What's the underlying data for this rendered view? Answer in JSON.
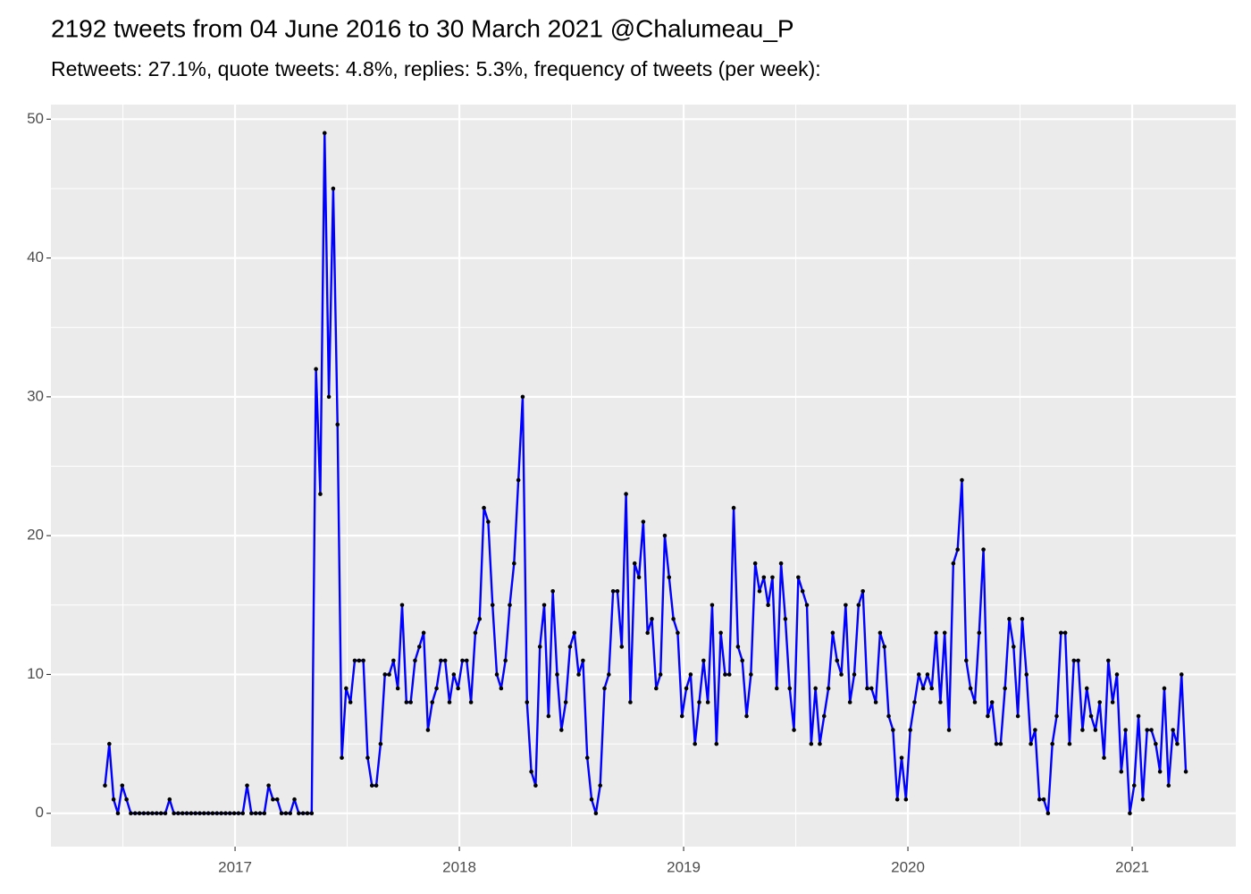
{
  "chart_data": {
    "type": "line",
    "title": "2192 tweets from 04 June 2016 to 30 March 2021 @Chalumeau_P",
    "subtitle": "Retweets: 27.1%, quote tweets: 4.8%, replies: 5.3%, frequency of tweets (per week):",
    "color": "#0000ff",
    "point_color": "#000000",
    "grid": true,
    "xlim": [
      2016.179,
      2021.462
    ],
    "xticks": [
      2017,
      2018,
      2019,
      2020,
      2021
    ],
    "ylim": [
      -2.4,
      51.05
    ],
    "yticks": [
      0,
      10,
      20,
      30,
      40,
      50
    ],
    "x": [
      2016.42,
      2016.4392,
      2016.4584,
      2016.4776,
      2016.4968,
      2016.516,
      2016.5352,
      2016.5544,
      2016.5736,
      2016.5928,
      2016.612,
      2016.6312,
      2016.6504,
      2016.6696,
      2016.6888,
      2016.708,
      2016.7272,
      2016.7464,
      2016.7656,
      2016.7848,
      2016.804,
      2016.8232,
      2016.8424,
      2016.8616,
      2016.8808,
      2016.9,
      2016.9192,
      2016.9384,
      2016.9576,
      2016.9768,
      2016.996,
      2017.0152,
      2017.0344,
      2017.0536,
      2017.0728,
      2017.092,
      2017.1112,
      2017.1304,
      2017.1496,
      2017.1688,
      2017.188,
      2017.2072,
      2017.2264,
      2017.2456,
      2017.2648,
      2017.284,
      2017.3032,
      2017.3224,
      2017.3416,
      2017.3608,
      2017.38,
      2017.3992,
      2017.4184,
      2017.4376,
      2017.4568,
      2017.476,
      2017.4952,
      2017.5144,
      2017.5336,
      2017.5528,
      2017.572,
      2017.5912,
      2017.6104,
      2017.6296,
      2017.6488,
      2017.668,
      2017.6872,
      2017.7064,
      2017.7256,
      2017.7448,
      2017.764,
      2017.7832,
      2017.8024,
      2017.8216,
      2017.8408,
      2017.86,
      2017.8792,
      2017.8984,
      2017.9176,
      2017.9368,
      2017.956,
      2017.9752,
      2017.9944,
      2018.0136,
      2018.0328,
      2018.052,
      2018.0712,
      2018.0904,
      2018.1096,
      2018.1288,
      2018.148,
      2018.1672,
      2018.1864,
      2018.2056,
      2018.2248,
      2018.244,
      2018.2632,
      2018.2824,
      2018.3016,
      2018.3208,
      2018.34,
      2018.3592,
      2018.3784,
      2018.3976,
      2018.4168,
      2018.436,
      2018.4552,
      2018.4744,
      2018.4936,
      2018.5128,
      2018.532,
      2018.5512,
      2018.5704,
      2018.5896,
      2018.6088,
      2018.628,
      2018.6472,
      2018.6664,
      2018.6856,
      2018.7048,
      2018.724,
      2018.7432,
      2018.7624,
      2018.7816,
      2018.8008,
      2018.82,
      2018.8392,
      2018.8584,
      2018.8776,
      2018.8968,
      2018.916,
      2018.9352,
      2018.9544,
      2018.9736,
      2018.9928,
      2019.012,
      2019.0312,
      2019.0504,
      2019.0696,
      2019.0888,
      2019.108,
      2019.1272,
      2019.1464,
      2019.1656,
      2019.1848,
      2019.204,
      2019.2232,
      2019.2424,
      2019.2616,
      2019.2808,
      2019.3,
      2019.3192,
      2019.3384,
      2019.3576,
      2019.3768,
      2019.396,
      2019.4152,
      2019.4344,
      2019.4536,
      2019.4728,
      2019.492,
      2019.5112,
      2019.5304,
      2019.5496,
      2019.5688,
      2019.588,
      2019.6072,
      2019.6264,
      2019.6456,
      2019.6648,
      2019.684,
      2019.7032,
      2019.7224,
      2019.7416,
      2019.7608,
      2019.78,
      2019.7992,
      2019.8184,
      2019.8376,
      2019.8568,
      2019.876,
      2019.8952,
      2019.9144,
      2019.9336,
      2019.9528,
      2019.972,
      2019.9912,
      2020.0104,
      2020.0296,
      2020.0488,
      2020.068,
      2020.0872,
      2020.1064,
      2020.1256,
      2020.1448,
      2020.164,
      2020.1832,
      2020.2024,
      2020.2216,
      2020.2408,
      2020.26,
      2020.2792,
      2020.2984,
      2020.3176,
      2020.3368,
      2020.356,
      2020.3752,
      2020.3944,
      2020.4136,
      2020.4328,
      2020.452,
      2020.4712,
      2020.4904,
      2020.5096,
      2020.5288,
      2020.548,
      2020.5672,
      2020.5864,
      2020.6056,
      2020.6248,
      2020.644,
      2020.6632,
      2020.6824,
      2020.7016,
      2020.7208,
      2020.74,
      2020.7592,
      2020.7784,
      2020.7976,
      2020.8168,
      2020.836,
      2020.8552,
      2020.8744,
      2020.8936,
      2020.9128,
      2020.932,
      2020.9512,
      2020.9704,
      2020.9896,
      2021.0088,
      2021.028,
      2021.0472,
      2021.0664,
      2021.0856,
      2021.1048,
      2021.124,
      2021.1432,
      2021.1624,
      2021.1816,
      2021.2008,
      2021.22,
      2021.2392
    ],
    "values": [
      2,
      5,
      1,
      0,
      2,
      1,
      0,
      0,
      0,
      0,
      0,
      0,
      0,
      0,
      0,
      1,
      0,
      0,
      0,
      0,
      0,
      0,
      0,
      0,
      0,
      0,
      0,
      0,
      0,
      0,
      0,
      0,
      0,
      2,
      0,
      0,
      0,
      0,
      2,
      1,
      1,
      0,
      0,
      0,
      1,
      0,
      0,
      0,
      0,
      32,
      23,
      49,
      30,
      45,
      28,
      4,
      9,
      8,
      11,
      11,
      11,
      4,
      2,
      2,
      5,
      10,
      10,
      11,
      9,
      15,
      8,
      8,
      11,
      12,
      13,
      6,
      8,
      9,
      11,
      11,
      8,
      10,
      9,
      11,
      11,
      8,
      13,
      14,
      22,
      21,
      15,
      10,
      9,
      11,
      15,
      18,
      24,
      30,
      8,
      3,
      2,
      12,
      15,
      7,
      16,
      10,
      6,
      8,
      12,
      13,
      10,
      11,
      4,
      1,
      0,
      2,
      9,
      10,
      16,
      16,
      12,
      23,
      8,
      18,
      17,
      21,
      13,
      14,
      9,
      10,
      20,
      17,
      14,
      13,
      7,
      9,
      10,
      5,
      8,
      11,
      8,
      15,
      5,
      13,
      10,
      10,
      22,
      12,
      11,
      7,
      10,
      18,
      16,
      17,
      15,
      17,
      9,
      18,
      14,
      9,
      6,
      17,
      16,
      15,
      5,
      9,
      5,
      7,
      9,
      13,
      11,
      10,
      15,
      8,
      10,
      15,
      16,
      9,
      9,
      8,
      13,
      12,
      7,
      6,
      1,
      4,
      1,
      6,
      8,
      10,
      9,
      10,
      9,
      13,
      8,
      13,
      6,
      18,
      19,
      24,
      11,
      9,
      8,
      13,
      19,
      7,
      8,
      5,
      5,
      9,
      14,
      12,
      7,
      14,
      10,
      5,
      6,
      1,
      1,
      0,
      5,
      7,
      13,
      13,
      5,
      11,
      11,
      6,
      9,
      7,
      6,
      8,
      4,
      11,
      8,
      10,
      3,
      6,
      0,
      2,
      7,
      1,
      6,
      6,
      5,
      3,
      9,
      2,
      6,
      5,
      10,
      3
    ]
  }
}
